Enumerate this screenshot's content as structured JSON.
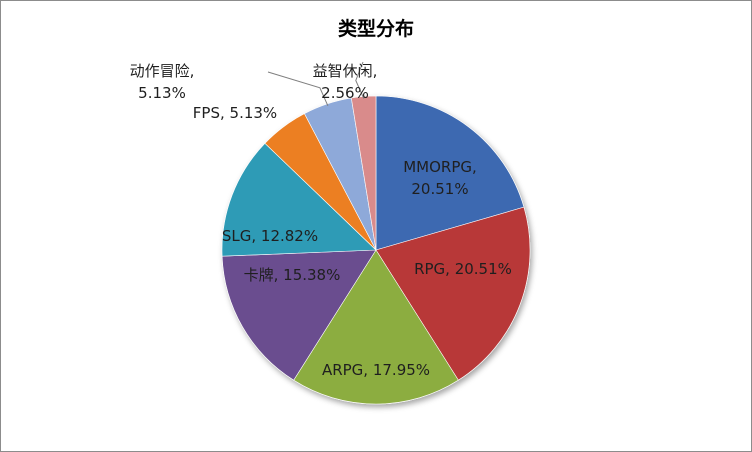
{
  "chart_data": {
    "type": "pie",
    "title": "类型分布",
    "slices": [
      {
        "name": "MMORPG",
        "value": 20.51,
        "label_lines": [
          "MMORPG,",
          "20.51%"
        ],
        "color": "#3d69b1"
      },
      {
        "name": "RPG",
        "value": 20.51,
        "label_lines": [
          "RPG, 20.51%"
        ],
        "color": "#b83838"
      },
      {
        "name": "ARPG",
        "value": 17.95,
        "label_lines": [
          "ARPG, 17.95%"
        ],
        "color": "#8cad3f"
      },
      {
        "name": "卡牌",
        "value": 15.38,
        "label_lines": [
          "卡牌, 15.38%"
        ],
        "color": "#6a4d8f"
      },
      {
        "name": "SLG",
        "value": 12.82,
        "label_lines": [
          "SLG, 12.82%"
        ],
        "color": "#2f9bb6"
      },
      {
        "name": "FPS",
        "value": 5.13,
        "label_lines": [
          "FPS, 5.13%"
        ],
        "color": "#ec7f22"
      },
      {
        "name": "动作冒险",
        "value": 5.13,
        "label_lines": [
          "动作冒险,",
          "5.13%"
        ],
        "color": "#8ea9d9"
      },
      {
        "name": "益智休闲",
        "value": 2.56,
        "label_lines": [
          "益智休闲,",
          "2.56%"
        ],
        "color": "#d98b8b"
      }
    ]
  }
}
